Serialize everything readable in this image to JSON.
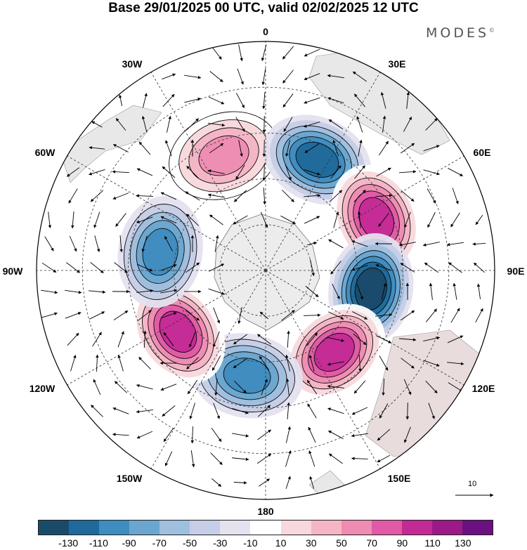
{
  "title": "Base 29/01/2025 00 UTC, valid 02/02/2025 12 UTC",
  "brand": "MODES",
  "brand_mark": "©",
  "map": {
    "projection": "south-polar-stereographic",
    "longitude_labels": {
      "top": "0",
      "top_right": "30E",
      "right_upper": "60E",
      "right": "90E",
      "right_lower": "120E",
      "bottom_right": "150E",
      "bottom": "180",
      "bottom_left": "150W",
      "left_lower": "120W",
      "left": "90W",
      "left_upper": "60W",
      "top_left": "30W"
    },
    "anomaly_centres": [
      {
        "sign": "positive",
        "lon": -20,
        "lat": -50,
        "level": 70
      },
      {
        "sign": "negative",
        "lon": 25,
        "lat": -50,
        "level": -110
      },
      {
        "sign": "positive",
        "lon": 65,
        "lat": -50,
        "level": 110
      },
      {
        "sign": "negative",
        "lon": 100,
        "lat": -55,
        "level": -130
      },
      {
        "sign": "positive",
        "lon": 140,
        "lat": -55,
        "level": 110
      },
      {
        "sign": "negative",
        "lon": -170,
        "lat": -55,
        "level": -90
      },
      {
        "sign": "positive",
        "lon": -125,
        "lat": -55,
        "level": 110
      },
      {
        "sign": "negative",
        "lon": -80,
        "lat": -55,
        "level": -90
      }
    ]
  },
  "reference_vector": {
    "label": "10"
  },
  "colorbar": {
    "colors": [
      "#1a4a6a",
      "#1f6a9a",
      "#3f8cc0",
      "#6aa6d0",
      "#9fbfdf",
      "#c5cee6",
      "#e4e2ef",
      "#ffffff",
      "#f8d8dc",
      "#f4b5c5",
      "#ee8cb2",
      "#e05aa6",
      "#c42a96",
      "#9c1a88",
      "#6a1080"
    ],
    "tick_labels": [
      "-130",
      "-110",
      "-90",
      "-70",
      "-50",
      "-30",
      "-10",
      "10",
      "30",
      "50",
      "70",
      "90",
      "110",
      "130"
    ]
  }
}
